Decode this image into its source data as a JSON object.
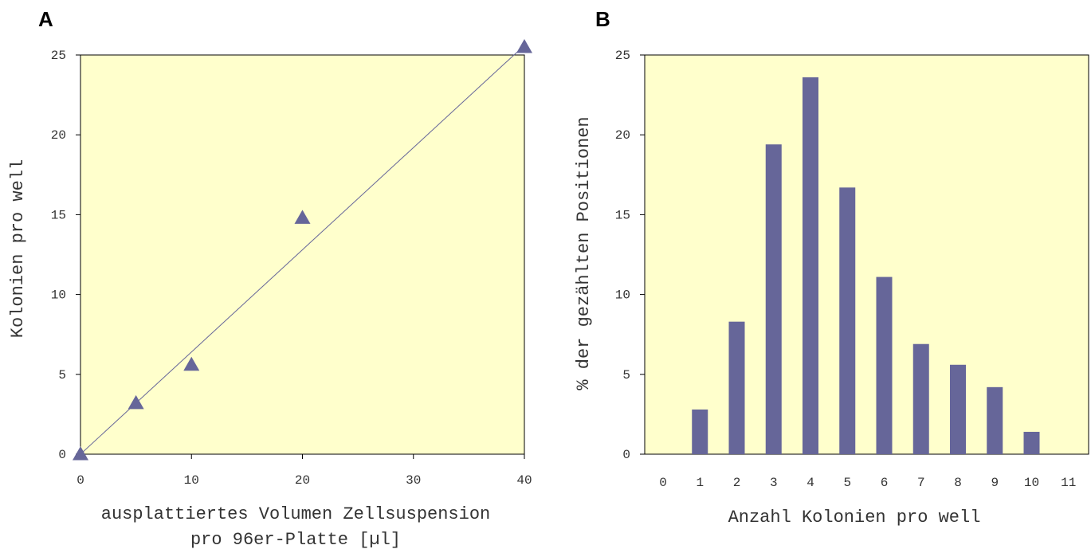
{
  "panels": {
    "a_label": "A",
    "b_label": "B"
  },
  "chart_data": [
    {
      "type": "scatter",
      "panel": "A",
      "xlabel_lines": [
        "ausplattiertes Volumen Zellsuspension",
        "pro 96er-Platte [µl]"
      ],
      "ylabel": "Kolonien pro well",
      "xlim": [
        0,
        40
      ],
      "ylim": [
        0,
        25
      ],
      "xticks": [
        "0",
        "10",
        "20",
        "30",
        "40"
      ],
      "yticks": [
        "0",
        "5",
        "10",
        "15",
        "20",
        "25"
      ],
      "points": [
        {
          "x": 0,
          "y": 0
        },
        {
          "x": 5,
          "y": 3.2
        },
        {
          "x": 10,
          "y": 5.6
        },
        {
          "x": 20,
          "y": 14.8
        },
        {
          "x": 40,
          "y": 25.5
        }
      ],
      "trendline": {
        "x1": 0,
        "y1": 0,
        "x2": 40,
        "y2": 25.6
      },
      "marker": "triangle",
      "grid": false,
      "colors": {
        "plot_bg": "#ffffcc",
        "marker": "#666699",
        "line": "#666699"
      }
    },
    {
      "type": "bar",
      "panel": "B",
      "xlabel": "Anzahl Kolonien pro well",
      "ylabel": "% der gezählten Positionen",
      "ylim": [
        0,
        25
      ],
      "categories": [
        "0",
        "1",
        "2",
        "3",
        "4",
        "5",
        "6",
        "7",
        "8",
        "9",
        "10",
        "11"
      ],
      "values": [
        0,
        2.8,
        8.3,
        19.4,
        23.6,
        16.7,
        11.1,
        6.9,
        5.6,
        4.2,
        1.4,
        0
      ],
      "yticks": [
        "0",
        "5",
        "10",
        "15",
        "20",
        "25"
      ],
      "grid": false,
      "colors": {
        "plot_bg": "#ffffcc",
        "bar": "#666699"
      }
    }
  ]
}
